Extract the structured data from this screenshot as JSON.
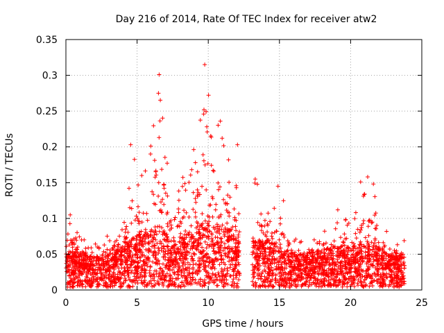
{
  "chart_data": {
    "type": "scatter",
    "title": "Day 216 of 2014, Rate Of TEC Index for receiver atw2",
    "xlabel": "GPS time / hours",
    "ylabel": "ROTI / TECUs",
    "xlim": [
      0,
      25
    ],
    "ylim": [
      0,
      0.35
    ],
    "xticks": [
      0,
      5,
      10,
      15,
      20,
      25
    ],
    "xtick_labels": [
      "0",
      "5",
      "10",
      "15",
      "20",
      "25"
    ],
    "yticks": [
      0,
      0.05,
      0.1,
      0.15,
      0.2,
      0.25,
      0.3,
      0.35
    ],
    "ytick_labels": [
      "0",
      "0.05",
      "0.1",
      "0.15",
      "0.2",
      "0.25",
      "0.3",
      "0.35"
    ],
    "grid": true,
    "grid_style": "dotted",
    "marker": "+",
    "color": "#ff0000",
    "data_gap_hours": [
      12.2,
      13.1
    ],
    "envelope": [
      {
        "x": 0.0,
        "typ": 0.028,
        "peak": 0.07
      },
      {
        "x": 0.3,
        "typ": 0.032,
        "peak": 0.105
      },
      {
        "x": 1.0,
        "typ": 0.03,
        "peak": 0.075
      },
      {
        "x": 2.0,
        "typ": 0.026,
        "peak": 0.065
      },
      {
        "x": 3.0,
        "typ": 0.03,
        "peak": 0.08
      },
      {
        "x": 4.0,
        "typ": 0.034,
        "peak": 0.09
      },
      {
        "x": 4.6,
        "typ": 0.045,
        "peak": 0.2
      },
      {
        "x": 5.5,
        "typ": 0.048,
        "peak": 0.16
      },
      {
        "x": 6.6,
        "typ": 0.055,
        "peak": 0.3
      },
      {
        "x": 7.5,
        "typ": 0.04,
        "peak": 0.11
      },
      {
        "x": 8.5,
        "typ": 0.048,
        "peak": 0.18
      },
      {
        "x": 9.8,
        "typ": 0.058,
        "peak": 0.315
      },
      {
        "x": 10.8,
        "typ": 0.055,
        "peak": 0.235
      },
      {
        "x": 11.6,
        "typ": 0.05,
        "peak": 0.2
      },
      {
        "x": 12.1,
        "typ": 0.04,
        "peak": 0.13
      },
      {
        "x": 13.2,
        "typ": 0.04,
        "peak": 0.155
      },
      {
        "x": 14.0,
        "typ": 0.042,
        "peak": 0.14
      },
      {
        "x": 15.0,
        "typ": 0.038,
        "peak": 0.145
      },
      {
        "x": 16.0,
        "typ": 0.03,
        "peak": 0.08
      },
      {
        "x": 17.0,
        "typ": 0.03,
        "peak": 0.07
      },
      {
        "x": 18.0,
        "typ": 0.033,
        "peak": 0.09
      },
      {
        "x": 19.0,
        "typ": 0.036,
        "peak": 0.115
      },
      {
        "x": 20.0,
        "typ": 0.035,
        "peak": 0.1
      },
      {
        "x": 21.0,
        "typ": 0.04,
        "peak": 0.16
      },
      {
        "x": 21.6,
        "typ": 0.04,
        "peak": 0.14
      },
      {
        "x": 22.5,
        "typ": 0.03,
        "peak": 0.085
      },
      {
        "x": 23.8,
        "typ": 0.026,
        "peak": 0.07
      }
    ],
    "notable_points": [
      {
        "x": 4.55,
        "y": 0.203
      },
      {
        "x": 6.55,
        "y": 0.301
      },
      {
        "x": 6.5,
        "y": 0.275
      },
      {
        "x": 9.75,
        "y": 0.315
      },
      {
        "x": 9.7,
        "y": 0.252
      },
      {
        "x": 9.9,
        "y": 0.228
      },
      {
        "x": 10.85,
        "y": 0.236
      },
      {
        "x": 12.05,
        "y": 0.203
      },
      {
        "x": 13.3,
        "y": 0.155
      },
      {
        "x": 14.9,
        "y": 0.145
      },
      {
        "x": 19.1,
        "y": 0.112
      },
      {
        "x": 20.7,
        "y": 0.151
      },
      {
        "x": 21.2,
        "y": 0.158
      },
      {
        "x": 21.6,
        "y": 0.148
      },
      {
        "x": 0.3,
        "y": 0.105
      }
    ]
  }
}
